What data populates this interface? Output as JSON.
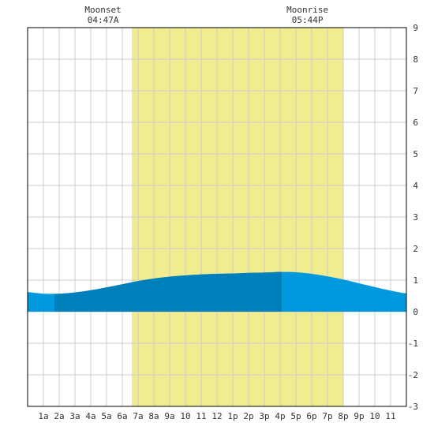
{
  "chart_data": {
    "type": "area",
    "annotations": [
      {
        "label": "Moonset",
        "time": "04:47A",
        "hour": 4.78
      },
      {
        "label": "Moonrise",
        "time": "05:44P",
        "hour": 17.73
      }
    ],
    "daylight": {
      "start_hour": 6.6,
      "end_hour": 20.0
    },
    "x": [
      0,
      1,
      2,
      3,
      4,
      5,
      6,
      7,
      8,
      9,
      10,
      11,
      12,
      13,
      14,
      15,
      16,
      17,
      18,
      19,
      20,
      21,
      22,
      23,
      24
    ],
    "y": [
      0.62,
      0.57,
      0.57,
      0.61,
      0.68,
      0.77,
      0.87,
      0.97,
      1.05,
      1.11,
      1.15,
      1.18,
      1.2,
      1.21,
      1.23,
      1.24,
      1.26,
      1.25,
      1.2,
      1.12,
      1.02,
      0.9,
      0.78,
      0.67,
      0.58
    ],
    "dark_band": {
      "start_hour": 1.7,
      "end_hour": 16.1
    },
    "xlim": [
      0,
      24
    ],
    "ylim": [
      -3,
      9
    ],
    "x_tick_labels": [
      "1a",
      "2a",
      "3a",
      "4a",
      "5a",
      "6a",
      "7a",
      "8a",
      "9a",
      "10",
      "11",
      "12",
      "1p",
      "2p",
      "3p",
      "4p",
      "5p",
      "6p",
      "7p",
      "8p",
      "9p",
      "10",
      "11"
    ],
    "y_tick_labels": [
      "9",
      "8",
      "7",
      "6",
      "5",
      "4",
      "3",
      "2",
      "1",
      "0",
      "-1",
      "-2",
      "-3"
    ],
    "y_ticks": [
      9,
      8,
      7,
      6,
      5,
      4,
      3,
      2,
      1,
      0,
      -1,
      -2,
      -3
    ],
    "grid": true,
    "colors": {
      "daylight": "#f2ec91",
      "tide_fill": "#0099dd",
      "tide_dark": "#0080bb",
      "grid": "#cccccc",
      "axis": "#000000"
    }
  }
}
